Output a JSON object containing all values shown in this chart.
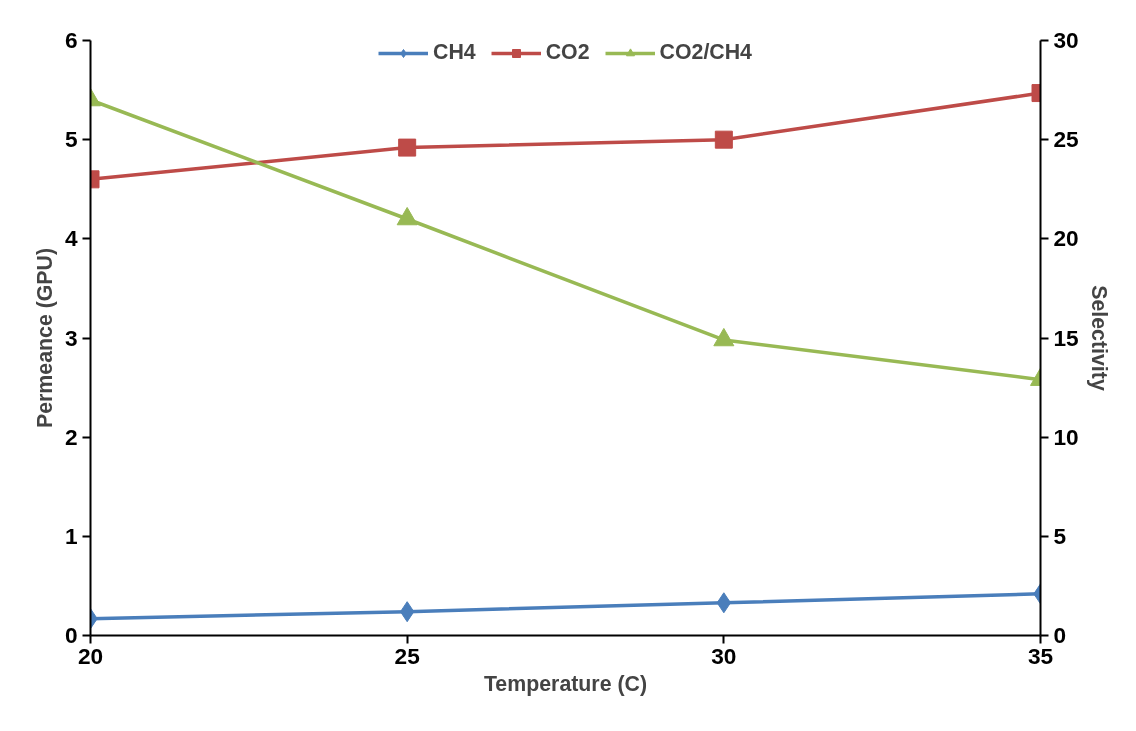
{
  "chart_data": {
    "type": "line",
    "xlabel": "Temperature (C)",
    "ylabel": "Permeance (GPU)",
    "y2label": "Selectivity",
    "x": [
      20,
      25,
      30,
      35
    ],
    "xlim": [
      20,
      35
    ],
    "xticks": [
      20,
      25,
      30,
      35
    ],
    "ylim": [
      0,
      6
    ],
    "yticks": [
      0,
      1,
      2,
      3,
      4,
      5,
      6
    ],
    "y2lim": [
      0,
      30
    ],
    "y2ticks": [
      0,
      5,
      10,
      15,
      20,
      25,
      30
    ],
    "grid": false,
    "legend": "top",
    "series": [
      {
        "name": "CH4",
        "color": "#4a7ebb",
        "marker": "diamond",
        "values": [
          0.17,
          0.24,
          0.33,
          0.42
        ]
      },
      {
        "name": "CO2",
        "color": "#be4b48",
        "marker": "square",
        "values": [
          4.6,
          4.92,
          5.0,
          5.47
        ]
      },
      {
        "name": "CO2/CH4",
        "color": "#98b954",
        "marker": "triangle",
        "axis": "y2",
        "values": [
          27.0,
          21.0,
          14.9,
          12.9
        ]
      }
    ]
  }
}
